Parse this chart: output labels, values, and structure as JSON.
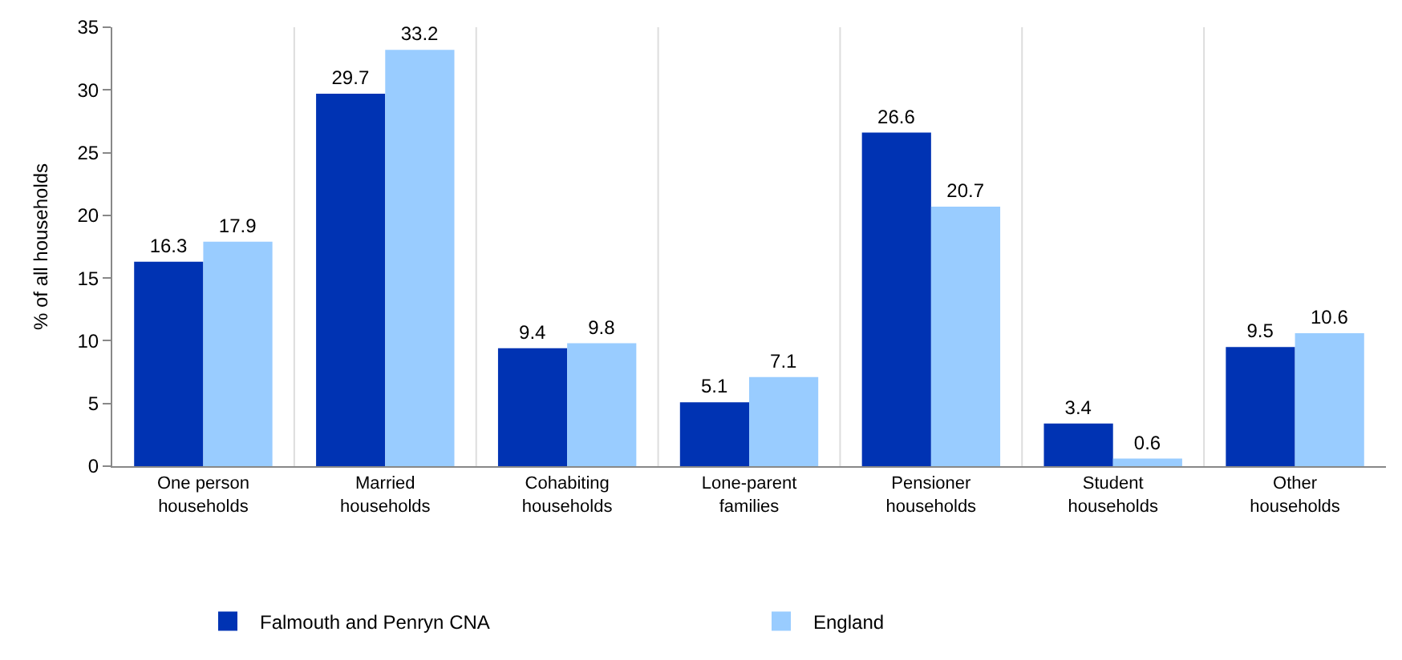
{
  "chart_data": {
    "type": "bar",
    "ylabel": "% of all households",
    "categories": [
      "One person households",
      "Married households",
      "Cohabiting households",
      "Lone-parent families",
      "Pensioner households",
      "Student households",
      "Other households"
    ],
    "series": [
      {
        "name": "Falmouth and Penryn CNA",
        "color": "#0033b3",
        "values": [
          16.3,
          29.7,
          9.4,
          5.1,
          26.6,
          3.4,
          9.5
        ]
      },
      {
        "name": "England",
        "color": "#99ccff",
        "values": [
          17.9,
          33.2,
          9.8,
          7.1,
          20.7,
          0.6,
          10.6
        ]
      }
    ],
    "ylim": [
      0,
      35
    ],
    "yticks": [
      0,
      5,
      10,
      15,
      20,
      25,
      30,
      35
    ],
    "grid": "x",
    "legend": "bottom",
    "data_labels": true
  }
}
